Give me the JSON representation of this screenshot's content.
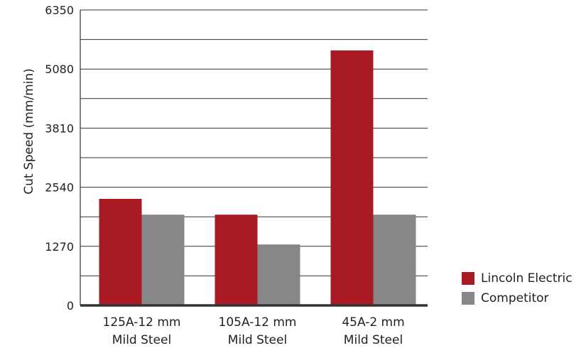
{
  "chart_data": {
    "type": "bar",
    "categories": [
      [
        "125A-12 mm",
        "Mild Steel"
      ],
      [
        "105A-12 mm",
        "Mild Steel"
      ],
      [
        "45A-2 mm",
        "Mild Steel"
      ]
    ],
    "series": [
      {
        "name": "Lincoln Electric",
        "color": "#a91a24",
        "values": [
          2290,
          1950,
          5480
        ]
      },
      {
        "name": "Competitor",
        "color": "#878787",
        "values": [
          1950,
          1310,
          1950
        ]
      }
    ],
    "ylabel": "Cut Speed (mm/min)",
    "ylim": [
      0,
      6350
    ],
    "yticks": [
      "0",
      "1270",
      "2540",
      "3810",
      "5080",
      "6350"
    ],
    "grid": true,
    "legend_position": "bottom-right"
  }
}
